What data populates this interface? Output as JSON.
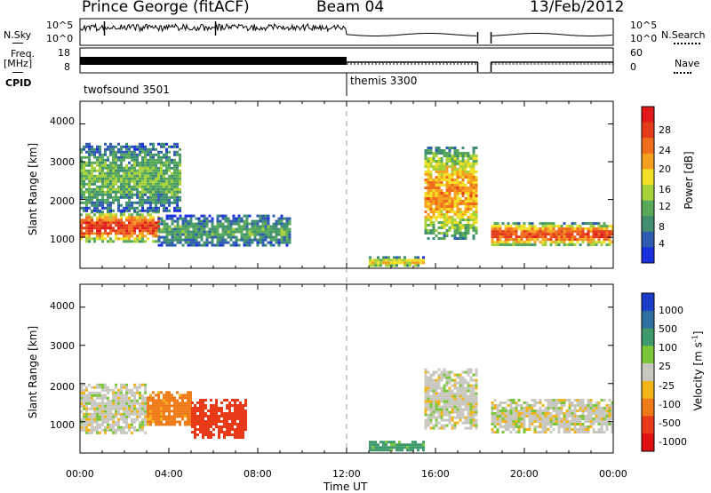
{
  "header": {
    "station": "Prince George (fitACF)",
    "beam": "Beam 04",
    "date": "13/Feb/2012"
  },
  "small_panels": {
    "nsky_label": "N.Sky",
    "nsky_ticks": [
      "10^5",
      "10^0"
    ],
    "nsearch_label": "N.Search",
    "nsearch_ticks": [
      "10^5",
      "10^0"
    ],
    "freq_label": "Freq.",
    "freq_unit": "[MHz]",
    "freq_ticks": [
      "18",
      "8"
    ],
    "nave_label": "Nave",
    "nave_ticks": [
      "60",
      "0"
    ],
    "cpid_label": "CPID",
    "cpid_entries": [
      {
        "name": "twofsound 3501",
        "start_hour": 0
      },
      {
        "name": "themis 3300",
        "start_hour": 12
      }
    ]
  },
  "time_axis": {
    "label": "Time UT",
    "ticks": [
      "00:00",
      "04:00",
      "08:00",
      "12:00",
      "16:00",
      "20:00",
      "00:00"
    ]
  },
  "power_panel": {
    "ylabel": "Slant Range [km]",
    "yticks": [
      "1000",
      "2000",
      "3000",
      "4000"
    ],
    "colorbar_label": "Power [dB]",
    "colorbar_ticks": [
      "4",
      "8",
      "12",
      "16",
      "20",
      "24",
      "28"
    ],
    "colors": [
      "#1a2fe0",
      "#2f5bb0",
      "#3f8f70",
      "#58a95a",
      "#a8d23a",
      "#f2e028",
      "#f5a020",
      "#ef6d1c",
      "#e43c1a",
      "#e01818"
    ]
  },
  "velocity_panel": {
    "ylabel": "Slant Range [km]",
    "yticks": [
      "1000",
      "2000",
      "3000",
      "4000"
    ],
    "colorbar_label": "Velocity [m s",
    "colorbar_label_sup": "-1",
    "colorbar_label_end": "]",
    "colorbar_ticks": [
      "1000",
      "500",
      "100",
      "25",
      "-25",
      "-100",
      "-500",
      "-1000"
    ],
    "colors": [
      "#1a3cc8",
      "#2e6ea0",
      "#3e9a6a",
      "#7cc63a",
      "#c8c8c0",
      "#f2b418",
      "#f07a18",
      "#e83a18",
      "#e01010"
    ]
  },
  "chart_data": [
    {
      "type": "heatmap",
      "title": "Prince George (fitACF) Beam 04 13/Feb/2012",
      "xlabel": "Time UT",
      "ylabel": "Slant Range [km]",
      "xlim": [
        0,
        24
      ],
      "ylim": [
        180,
        4600
      ],
      "quantity": "Power [dB]",
      "color_range": [
        0,
        32
      ],
      "echo_regions": [
        {
          "hours": [
            0,
            3.5
          ],
          "range_km": [
            900,
            1700
          ],
          "power_db": 28
        },
        {
          "hours": [
            0,
            4.5
          ],
          "range_km": [
            1700,
            3500
          ],
          "power_db": 12
        },
        {
          "hours": [
            3.5,
            9.5
          ],
          "range_km": [
            800,
            1600
          ],
          "power_db": 10
        },
        {
          "hours": [
            13,
            15.5
          ],
          "range_km": [
            250,
            500
          ],
          "power_db": 18
        },
        {
          "hours": [
            15.5,
            17.8
          ],
          "range_km": [
            1000,
            3400
          ],
          "power_db": 22
        },
        {
          "hours": [
            18.5,
            24
          ],
          "range_km": [
            800,
            1400
          ],
          "power_db": 26
        }
      ]
    },
    {
      "type": "heatmap",
      "title": "Prince George (fitACF) Beam 04 13/Feb/2012",
      "xlabel": "Time UT",
      "ylabel": "Slant Range [km]",
      "xlim": [
        0,
        24
      ],
      "ylim": [
        180,
        4600
      ],
      "quantity": "Velocity [m s-1]",
      "color_levels": [
        1000,
        500,
        100,
        25,
        -25,
        -100,
        -500,
        -1000
      ],
      "echo_regions": [
        {
          "hours": [
            0,
            3
          ],
          "range_km": [
            700,
            2000
          ],
          "velocity_ms": 0
        },
        {
          "hours": [
            3,
            5
          ],
          "range_km": [
            900,
            1800
          ],
          "velocity_ms": -150
        },
        {
          "hours": [
            5,
            7.5
          ],
          "range_km": [
            600,
            1600
          ],
          "velocity_ms": -600
        },
        {
          "hours": [
            13,
            15.5
          ],
          "range_km": [
            250,
            500
          ],
          "velocity_ms": 150
        },
        {
          "hours": [
            15.5,
            17.8
          ],
          "range_km": [
            800,
            2400
          ],
          "velocity_ms": 0
        },
        {
          "hours": [
            18.5,
            24
          ],
          "range_km": [
            700,
            1600
          ],
          "velocity_ms": 0
        }
      ]
    },
    {
      "type": "line",
      "title": "N.Sky / N.Search",
      "xlabel": "Time UT",
      "xlim": [
        0,
        24
      ],
      "gap_hours": [
        17.9,
        18.5
      ],
      "regime_change_hour": 12
    },
    {
      "type": "line",
      "title": "Freq. [MHz] / Nave",
      "xlabel": "Time UT",
      "xlim": [
        0,
        24
      ],
      "ylim_freq_mhz": [
        8,
        18
      ],
      "ylim_nave": [
        0,
        60
      ],
      "gap_hours": [
        17.9,
        18.5
      ],
      "regime_change_hour": 12
    }
  ]
}
